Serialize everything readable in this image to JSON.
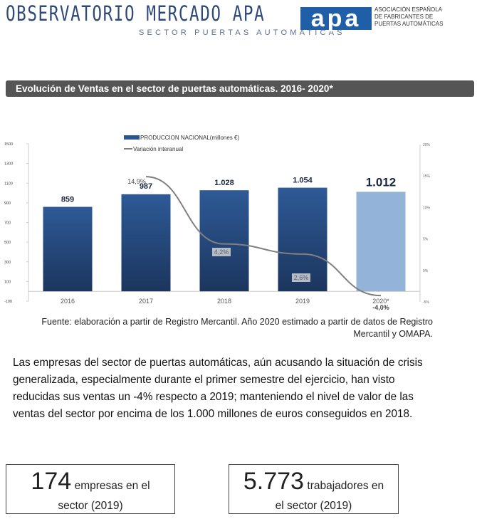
{
  "header": {
    "brand_title": "OBSERVATORIO MERCADO APA",
    "brand_subtitle": "SECTOR PUERTAS AUTOMATICAS",
    "logo_text": "apa",
    "association_lines": [
      "ASOCIACIÓN ESPAÑOLA",
      "DE FABRICANTES DE",
      "PUERTAS AUTOMÁTICAS"
    ]
  },
  "section_title": "Evolución de Ventas en el sector de puertas automáticas. 2016- 2020*",
  "chart_data": {
    "type": "bar",
    "categories": [
      "2016",
      "2017",
      "2018",
      "2019",
      "2020*"
    ],
    "series": [
      {
        "name": "PRODUCCION NACIONAL(millones €)",
        "type": "bar",
        "values": [
          859,
          987,
          1028,
          1054,
          1012
        ],
        "labels": [
          "859",
          "987",
          "1.028",
          "1.054",
          "1.012"
        ],
        "color": "#2b5590",
        "highlight_color": "#94b3d8"
      },
      {
        "name": "Variación interanual",
        "type": "line",
        "axis": "right",
        "values": [
          null,
          14.9,
          4.2,
          2.6,
          -4.0
        ],
        "labels": [
          "",
          "14,9%",
          "4,2%",
          "2,6%",
          "-4,0%"
        ],
        "color": "#808080"
      }
    ],
    "left_axis": {
      "ylim": [
        -100,
        1500
      ],
      "ticks": [
        "1500",
        "1300",
        "1100",
        "900",
        "700",
        "500",
        "300",
        "100",
        "-100"
      ]
    },
    "right_axis": {
      "ylim": [
        -5,
        20
      ],
      "ticks": [
        "20%",
        "15%",
        "10%",
        "5%",
        "0%",
        "-5%"
      ]
    },
    "legend_position": "top-center"
  },
  "source": "Fuente: elaboración a partir de Registro Mercantil. Año 2020 estimado a partir de datos de Registro Mercantil y OMAPA.",
  "paragraph": "Las empresas del sector de puertas automáticas, aún acusando la situación de crisis generalizada, especialmente durante el primer semestre del ejercicio, han visto reducidas sus ventas un -4% respecto a 2019; manteniendo el nivel de valor de las ventas del sector por encima de los 1.000 millones de euros conseguidos en 2018.",
  "stats": [
    {
      "number": "174",
      "text1": "empresas en el",
      "text2": "sector (2019)"
    },
    {
      "number": "5.773",
      "text1": "trabajadores  en",
      "text2": "el sector (2019)"
    }
  ]
}
